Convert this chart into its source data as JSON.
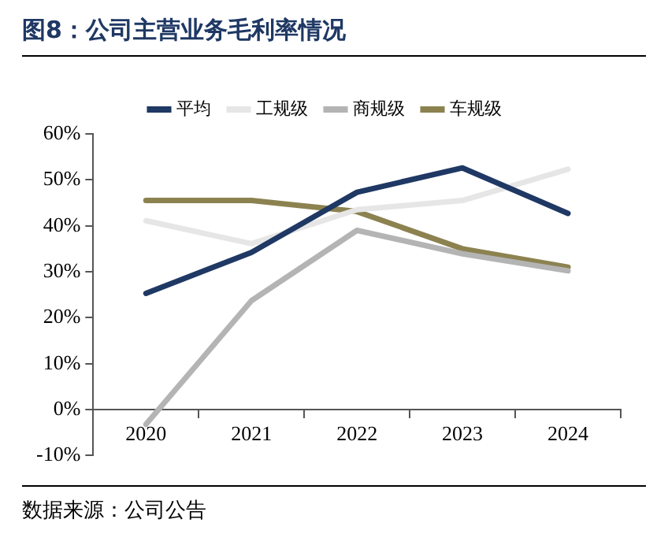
{
  "chart_data": {
    "type": "line",
    "title": "图8：公司主营业务毛利率情况",
    "annotations": [
      "数据来源：公司公告"
    ],
    "categories": [
      "2020",
      "2021",
      "2022",
      "2023",
      "2024"
    ],
    "series": [
      {
        "name": "平均",
        "color": "#1f3864",
        "values": [
          25.3,
          34.2,
          47.3,
          52.6,
          42.7
        ]
      },
      {
        "name": "工规级",
        "color": "#e6e6e6",
        "values": [
          41.1,
          36.1,
          43.5,
          45.5,
          52.3
        ]
      },
      {
        "name": "商规级",
        "color": "#b4b4b4",
        "values": [
          -3.2,
          23.7,
          39.0,
          33.9,
          30.2
        ]
      },
      {
        "name": "车规级",
        "color": "#8c8250",
        "values": [
          45.5,
          45.5,
          43.1,
          35.0,
          31.0
        ]
      }
    ],
    "ylim": [
      -10,
      60
    ],
    "yticks": [
      {
        "value": -10,
        "label": "-10%"
      },
      {
        "value": 0,
        "label": "0%"
      },
      {
        "value": 10,
        "label": "10%"
      },
      {
        "value": 20,
        "label": "20%"
      },
      {
        "value": 30,
        "label": "30%"
      },
      {
        "value": 40,
        "label": "40%"
      },
      {
        "value": 50,
        "label": "50%"
      },
      {
        "value": 60,
        "label": "60%"
      }
    ],
    "grid": false,
    "legend": "top",
    "marker": "none",
    "line_style": "solid"
  }
}
